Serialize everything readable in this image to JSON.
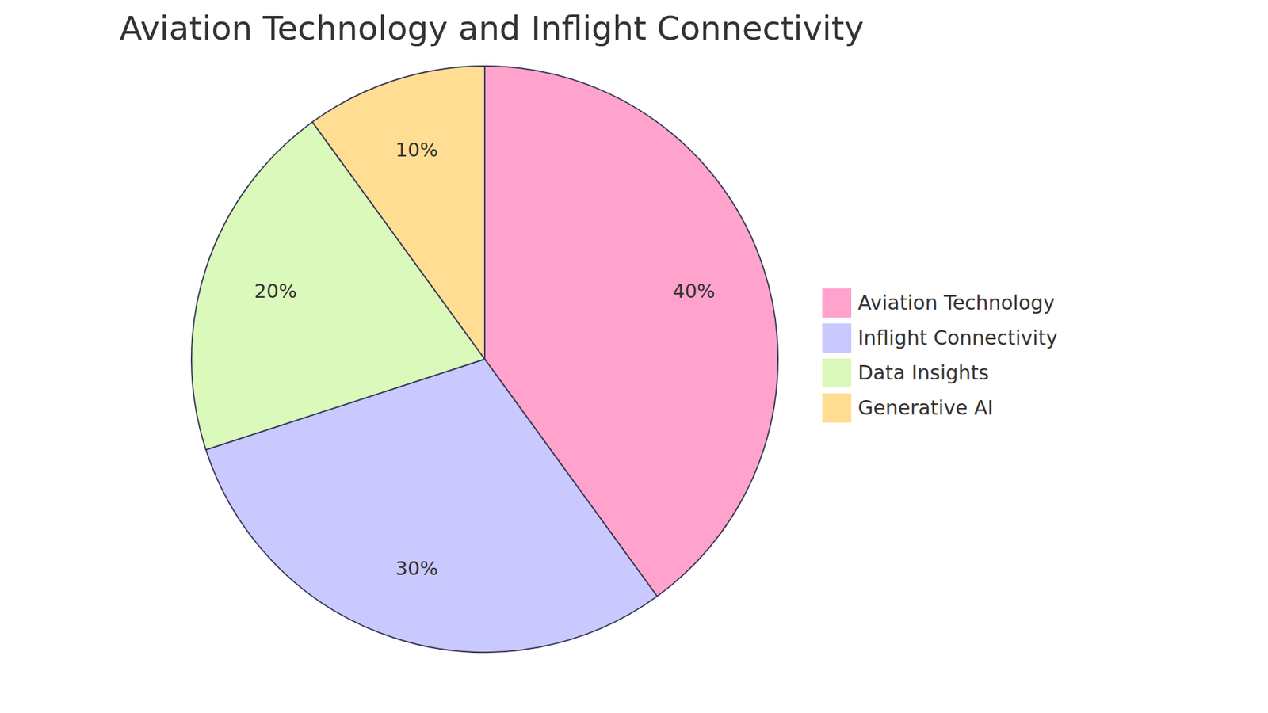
{
  "chart_data": {
    "type": "pie",
    "title": "Aviation Technology and Inflight Connectivity",
    "categories": [
      "Aviation Technology",
      "Inflight Connectivity",
      "Data Insights",
      "Generative AI"
    ],
    "values": [
      40,
      30,
      20,
      10
    ],
    "value_labels": [
      "40%",
      "30%",
      "20%",
      "10%"
    ],
    "colors": [
      "#ffa3cd",
      "#c9c9ff",
      "#dbf9bb",
      "#ffde94"
    ],
    "data_labels": true,
    "legend": "right"
  }
}
